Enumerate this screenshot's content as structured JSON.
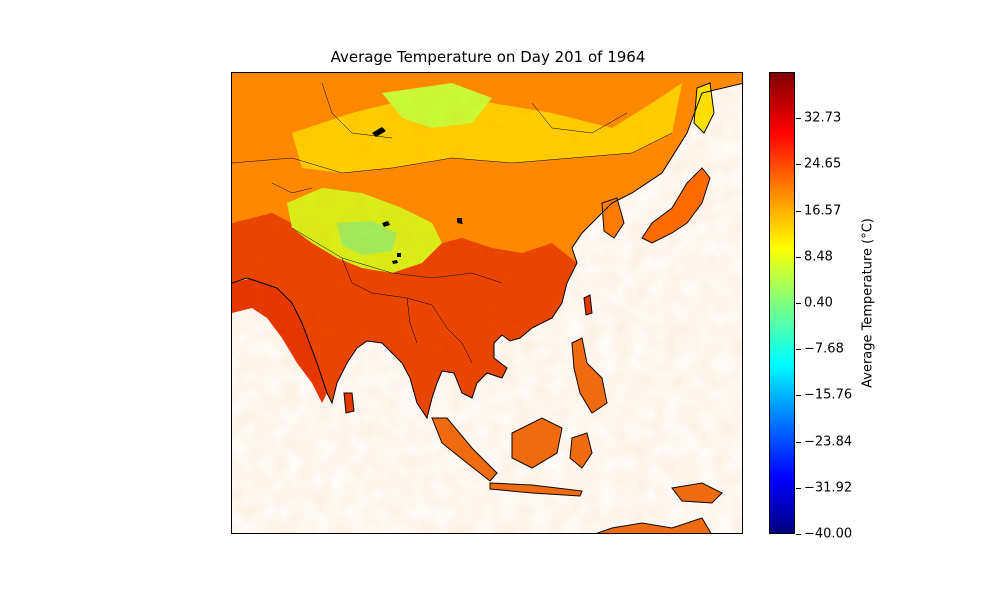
{
  "title": "Average Temperature on Day 201 of 1964",
  "colorbar": {
    "label": "Average Temperature (°C)",
    "ticks": [
      "32.73",
      "24.65",
      "16.57",
      "8.48",
      "0.40",
      "−7.68",
      "−15.76",
      "−23.84",
      "−31.92",
      "−40.00"
    ],
    "min": -40.0,
    "max": 40.81,
    "colormap": "jet"
  },
  "map": {
    "region": "East, South and Southeast Asia",
    "colors": {
      "ocean": "#ffffff",
      "hot": "#e32a00",
      "warm": "#ff7a00",
      "mild": "#ffd500",
      "cool": "#c8ff3a",
      "coast": "#000000"
    }
  }
}
